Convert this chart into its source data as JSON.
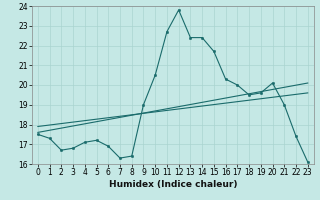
{
  "xlabel": "Humidex (Indice chaleur)",
  "ylabel": "",
  "bg_color": "#c5e8e5",
  "line_color": "#1a6b6b",
  "xlim": [
    -0.5,
    23.5
  ],
  "ylim": [
    16,
    24
  ],
  "yticks": [
    16,
    17,
    18,
    19,
    20,
    21,
    22,
    23,
    24
  ],
  "xticks": [
    0,
    1,
    2,
    3,
    4,
    5,
    6,
    7,
    8,
    9,
    10,
    11,
    12,
    13,
    14,
    15,
    16,
    17,
    18,
    19,
    20,
    21,
    22,
    23
  ],
  "curve1_x": [
    0,
    1,
    2,
    3,
    4,
    5,
    6,
    7,
    8,
    9,
    10,
    11,
    12,
    13,
    14,
    15,
    16,
    17,
    18,
    19,
    20,
    21,
    22,
    23
  ],
  "curve1_y": [
    17.5,
    17.3,
    16.7,
    16.8,
    17.1,
    17.2,
    16.9,
    16.3,
    16.4,
    19.0,
    20.5,
    22.7,
    23.8,
    22.4,
    22.4,
    21.7,
    20.3,
    20.0,
    19.5,
    19.6,
    20.1,
    19.0,
    17.4,
    16.1
  ],
  "curve2_x": [
    0,
    23
  ],
  "curve2_y": [
    17.6,
    20.1
  ],
  "curve3_x": [
    0,
    23
  ],
  "curve3_y": [
    17.9,
    19.6
  ],
  "grid_color": "#aad4d0",
  "spine_color": "#888888",
  "xlabel_fontsize": 6.5,
  "xlabel_fontweight": "bold",
  "tick_fontsize": 5.5,
  "marker_size": 1.8
}
